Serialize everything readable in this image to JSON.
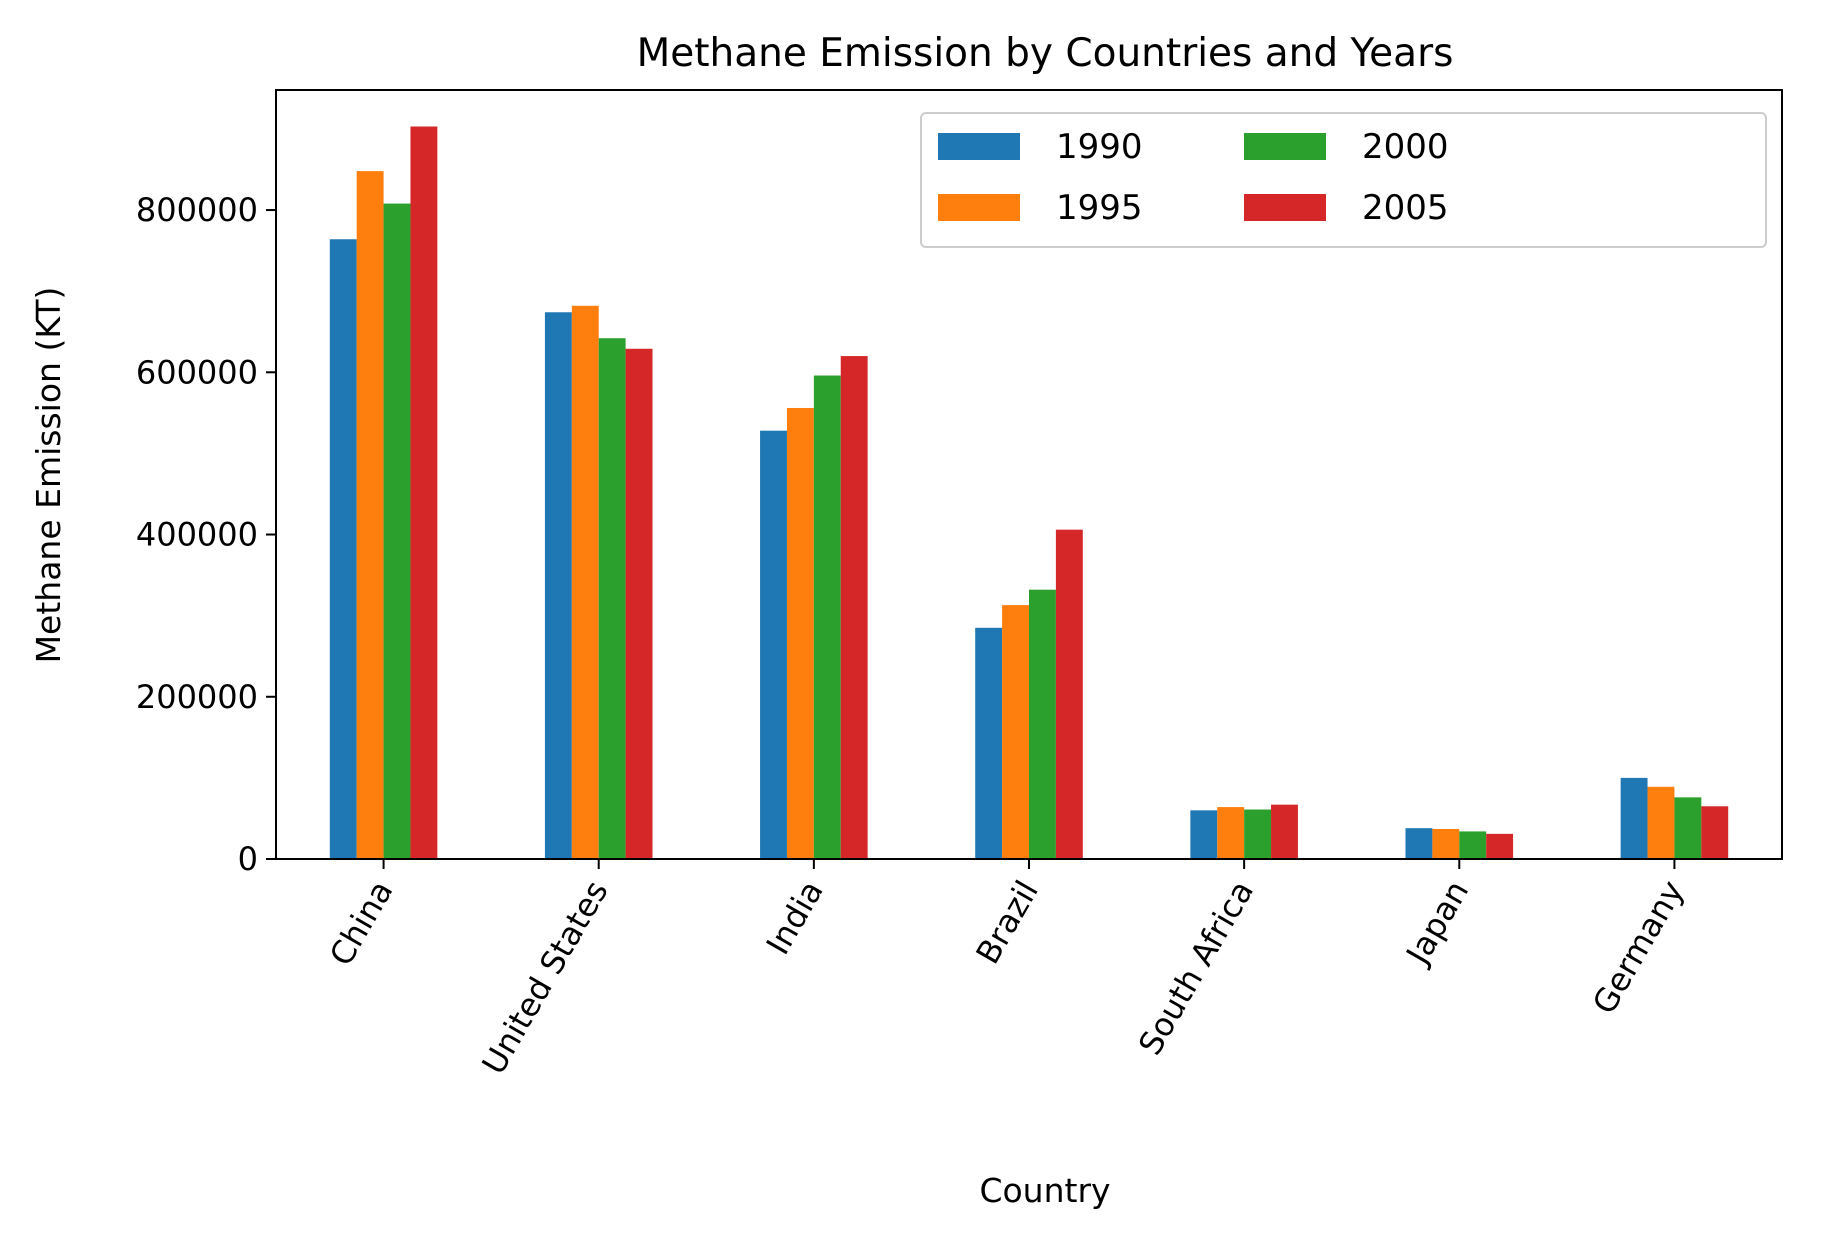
{
  "chart_data": {
    "type": "bar",
    "title": "Methane Emission by Countries and Years",
    "xlabel": "Country",
    "ylabel": "Methane Emission (KT)",
    "categories": [
      "China",
      "United States",
      "India",
      "Brazil",
      "South Africa",
      "Japan",
      "Germany"
    ],
    "series": [
      {
        "name": "1990",
        "color": "#1f77b4",
        "values": [
          764000,
          674000,
          528000,
          285000,
          60000,
          38000,
          100000
        ]
      },
      {
        "name": "1995",
        "color": "#ff7f0e",
        "values": [
          848000,
          682000,
          556000,
          313000,
          64000,
          37000,
          89000
        ]
      },
      {
        "name": "2000",
        "color": "#2ca02c",
        "values": [
          808000,
          642000,
          596000,
          332000,
          61000,
          34000,
          76000
        ]
      },
      {
        "name": "2005",
        "color": "#d62728",
        "values": [
          903000,
          629000,
          620000,
          406000,
          67000,
          31000,
          65000
        ]
      }
    ],
    "ylim": [
      0,
      948000
    ],
    "yticks": [
      "0",
      "200000",
      "400000",
      "600000",
      "800000"
    ],
    "legend": {
      "position": "top-right",
      "columns": 3
    },
    "grid": false
  }
}
